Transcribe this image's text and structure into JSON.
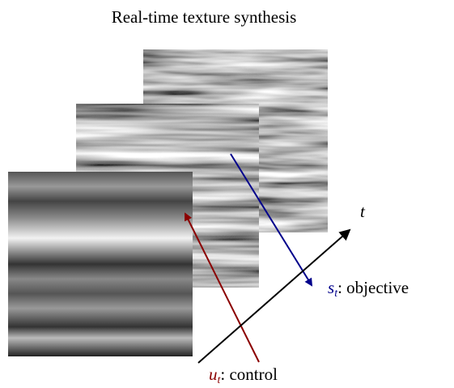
{
  "title": "Real-time texture synthesis",
  "axis_label": "t",
  "objective": {
    "symbol": "s",
    "subscript": "t",
    "text": ": objective"
  },
  "control": {
    "symbol": "u",
    "subscript": "t",
    "text": ": control"
  }
}
